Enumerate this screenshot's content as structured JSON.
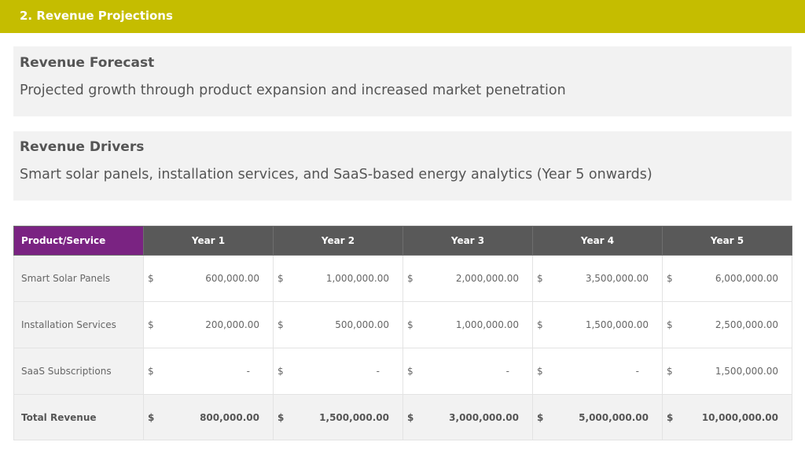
{
  "header": {
    "title": "2. Revenue Projections"
  },
  "forecast": {
    "heading": "Revenue Forecast",
    "text": "Projected growth through product expansion and increased market penetration"
  },
  "drivers": {
    "heading": "Revenue Drivers",
    "text": "Smart solar panels, installation services, and SaaS-based energy analytics (Year 5 onwards)"
  },
  "table": {
    "columns": [
      "Product/Service",
      "Year 1",
      "Year 2",
      "Year 3",
      "Year 4",
      "Year 5"
    ],
    "currency": "$",
    "rows": [
      {
        "label": "Smart Solar Panels",
        "values": [
          "600,000.00",
          "1,000,000.00",
          "2,000,000.00",
          "3,500,000.00",
          "6,000,000.00"
        ]
      },
      {
        "label": "Installation Services",
        "values": [
          "200,000.00",
          "500,000.00",
          "1,000,000.00",
          "1,500,000.00",
          "2,500,000.00"
        ]
      },
      {
        "label": "SaaS Subscriptions",
        "values": [
          "-",
          "-",
          "-",
          "-",
          "1,500,000.00"
        ]
      }
    ],
    "total": {
      "label": "Total Revenue",
      "values": [
        "800,000.00",
        "1,500,000.00",
        "3,000,000.00",
        "5,000,000.00",
        "10,000,000.00"
      ]
    }
  },
  "colors": {
    "topbar": "#c5bd00",
    "header_accent": "#7a2382",
    "header_dark": "#595959",
    "card_bg": "#f2f2f2"
  }
}
